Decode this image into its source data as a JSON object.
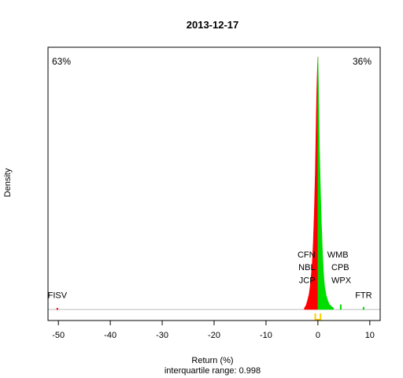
{
  "chart_data": {
    "type": "area",
    "title": "2013-12-17",
    "xlabel": "Return (%)",
    "ylabel": "Density",
    "subtitle": "interquartile range: 0.998",
    "xlim": [
      -52,
      12
    ],
    "ylim": [
      0,
      1
    ],
    "x_ticks": [
      -50,
      -40,
      -30,
      -20,
      -10,
      0,
      10
    ],
    "pct_negative": "63%",
    "pct_positive": "36%",
    "colors": {
      "negative": "#ff0000",
      "positive": "#00dd00",
      "marker": "#ffcc00",
      "baseline": "#bbbbbb"
    },
    "series": [
      {
        "name": "negative",
        "x": [
          -2.6,
          -2.3,
          -2.0,
          -1.7,
          -1.5,
          -1.3,
          -1.1,
          -0.9,
          -0.7,
          -0.5,
          -0.4,
          -0.3,
          -0.2,
          -0.1,
          0.0
        ],
        "y": [
          0.006,
          0.015,
          0.035,
          0.06,
          0.09,
          0.13,
          0.18,
          0.26,
          0.38,
          0.54,
          0.66,
          0.78,
          0.88,
          0.95,
          1.0
        ]
      },
      {
        "name": "positive",
        "x": [
          0.0,
          0.1,
          0.2,
          0.3,
          0.5,
          0.7,
          0.9,
          1.1,
          1.3,
          1.6,
          1.9,
          2.2,
          2.6,
          3.0
        ],
        "y": [
          1.0,
          0.9,
          0.78,
          0.64,
          0.47,
          0.33,
          0.22,
          0.14,
          0.09,
          0.055,
          0.035,
          0.02,
          0.012,
          0.006
        ]
      }
    ],
    "small_marks": [
      {
        "x": -50.2,
        "y": 0.006,
        "side": "negative"
      },
      {
        "x": 4.4,
        "y": 0.02,
        "side": "positive"
      },
      {
        "x": 8.8,
        "y": 0.01,
        "side": "positive"
      }
    ],
    "annotations": [
      {
        "text": "FISV",
        "x": -50.2,
        "y": 0.045,
        "anchor": "middle"
      },
      {
        "text": "CFN",
        "x": -0.5,
        "y": 0.205,
        "anchor": "end"
      },
      {
        "text": "NBL",
        "x": -0.5,
        "y": 0.155,
        "anchor": "end"
      },
      {
        "text": "JCP",
        "x": -0.5,
        "y": 0.105,
        "anchor": "end"
      },
      {
        "text": "WMB",
        "x": 1.8,
        "y": 0.205,
        "anchor": "start"
      },
      {
        "text": "CPB",
        "x": 2.6,
        "y": 0.155,
        "anchor": "start"
      },
      {
        "text": "WPX",
        "x": 2.6,
        "y": 0.105,
        "anchor": "start"
      },
      {
        "text": "FTR",
        "x": 8.8,
        "y": 0.045,
        "anchor": "middle"
      }
    ],
    "iqr_marks": [
      -0.5,
      0.5
    ]
  }
}
